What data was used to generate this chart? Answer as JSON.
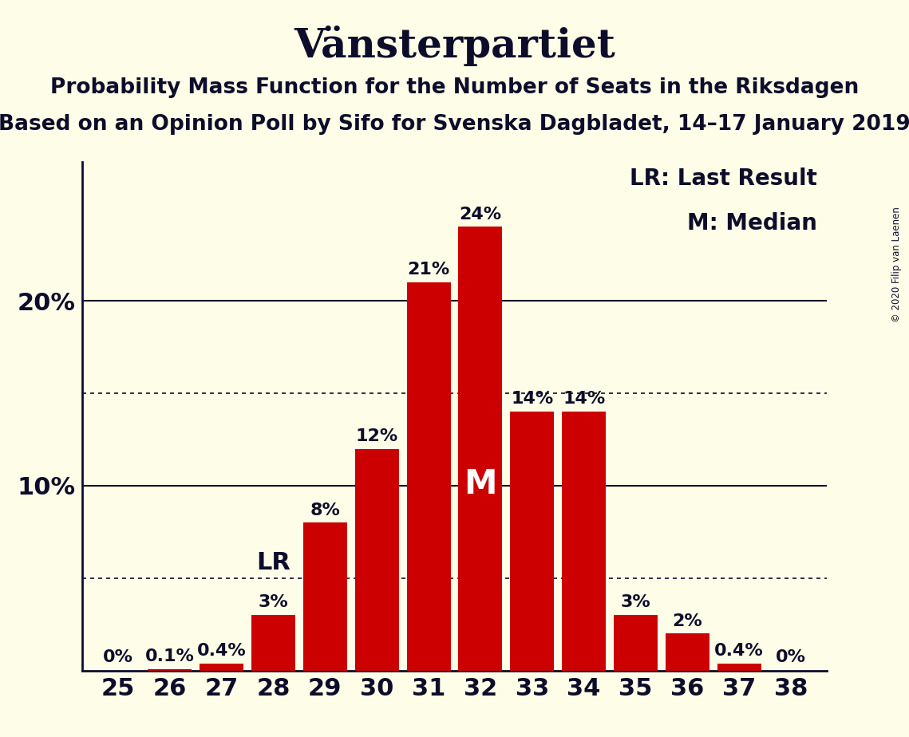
{
  "title": "Vänsterpartiet",
  "subtitle1": "Probability Mass Function for the Number of Seats in the Riksdagen",
  "subtitle2": "Based on an Opinion Poll by Sifo for Svenska Dagbladet, 14–17 January 2019",
  "copyright": "© 2020 Filip van Laenen",
  "seats": [
    25,
    26,
    27,
    28,
    29,
    30,
    31,
    32,
    33,
    34,
    35,
    36,
    37,
    38
  ],
  "probabilities": [
    0.0,
    0.1,
    0.4,
    3.0,
    8.0,
    12.0,
    21.0,
    24.0,
    14.0,
    14.0,
    3.0,
    2.0,
    0.4,
    0.0
  ],
  "labels": [
    "0%",
    "0.1%",
    "0.4%",
    "3%",
    "8%",
    "12%",
    "21%",
    "24%",
    "14%",
    "14%",
    "3%",
    "2%",
    "0.4%",
    "0%"
  ],
  "bar_color": "#CC0000",
  "background_color": "#FEFEE8",
  "text_color": "#0D0D2B",
  "lr_seat": 28,
  "median_seat": 32,
  "yticks": [
    10,
    20
  ],
  "ytick_labels": [
    "10%",
    "20%"
  ],
  "solid_lines": [
    10,
    20
  ],
  "dotted_lines": [
    5,
    15
  ],
  "legend_lr": "LR: Last Result",
  "legend_m": "M: Median",
  "title_fontsize": 36,
  "subtitle_fontsize": 19,
  "bar_label_fontsize": 16,
  "tick_fontsize": 22,
  "legend_fontsize": 20,
  "lr_label_fontsize": 22,
  "m_label_fontsize": 30
}
